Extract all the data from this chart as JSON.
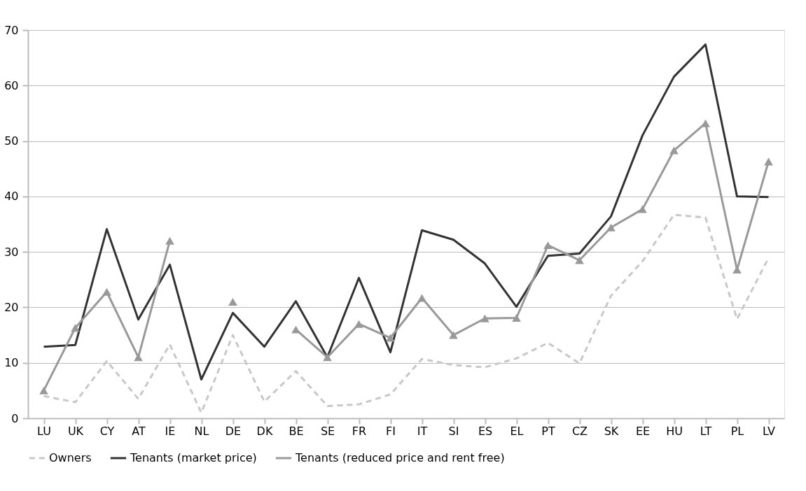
{
  "chart_data": {
    "type": "line",
    "categories": [
      "LU",
      "UK",
      "CY",
      "AT",
      "IE",
      "NL",
      "DE",
      "DK",
      "BE",
      "SE",
      "FR",
      "FI",
      "IT",
      "SI",
      "ES",
      "EL",
      "PT",
      "CZ",
      "SK",
      "EE",
      "HU",
      "LT",
      "PL",
      "LV"
    ],
    "ylim": [
      0,
      70
    ],
    "yticks": [
      0,
      10,
      20,
      30,
      40,
      50,
      60,
      70
    ],
    "grid": "y",
    "legend": "bottom",
    "series": [
      {
        "name": "Owners",
        "color": "#c8c8c8",
        "line_style": "dashed",
        "marker": "none",
        "values": [
          4,
          2.9,
          10.3,
          3.5,
          13.3,
          1,
          15,
          3,
          8.5,
          2.2,
          2.5,
          4.3,
          10.7,
          9.6,
          9.2,
          10.8,
          13.6,
          9.9,
          22.1,
          28.3,
          36.7,
          36.2,
          17.9,
          28.9
        ]
      },
      {
        "name": "Tenants (market price)",
        "color": "#333333",
        "line_style": "solid",
        "marker": "none",
        "values": [
          12.9,
          13.2,
          34.1,
          17.8,
          27.7,
          7,
          19,
          12.9,
          21.1,
          11,
          25.3,
          11.9,
          33.9,
          32.2,
          27.9,
          20.1,
          29.3,
          29.7,
          36.4,
          51,
          61.6,
          67.4,
          40,
          39.9
        ]
      },
      {
        "name": "Tenants (reduced price and rent free)",
        "color": "#999999",
        "line_style": "solid",
        "marker": "triangle",
        "values": [
          5,
          16.3,
          22.8,
          11,
          32,
          null,
          21,
          null,
          16,
          11,
          17,
          14.5,
          21.7,
          15,
          18,
          18.1,
          31.2,
          28.5,
          34.4,
          37.7,
          48.3,
          53.2,
          26.8,
          46.3
        ]
      }
    ]
  }
}
